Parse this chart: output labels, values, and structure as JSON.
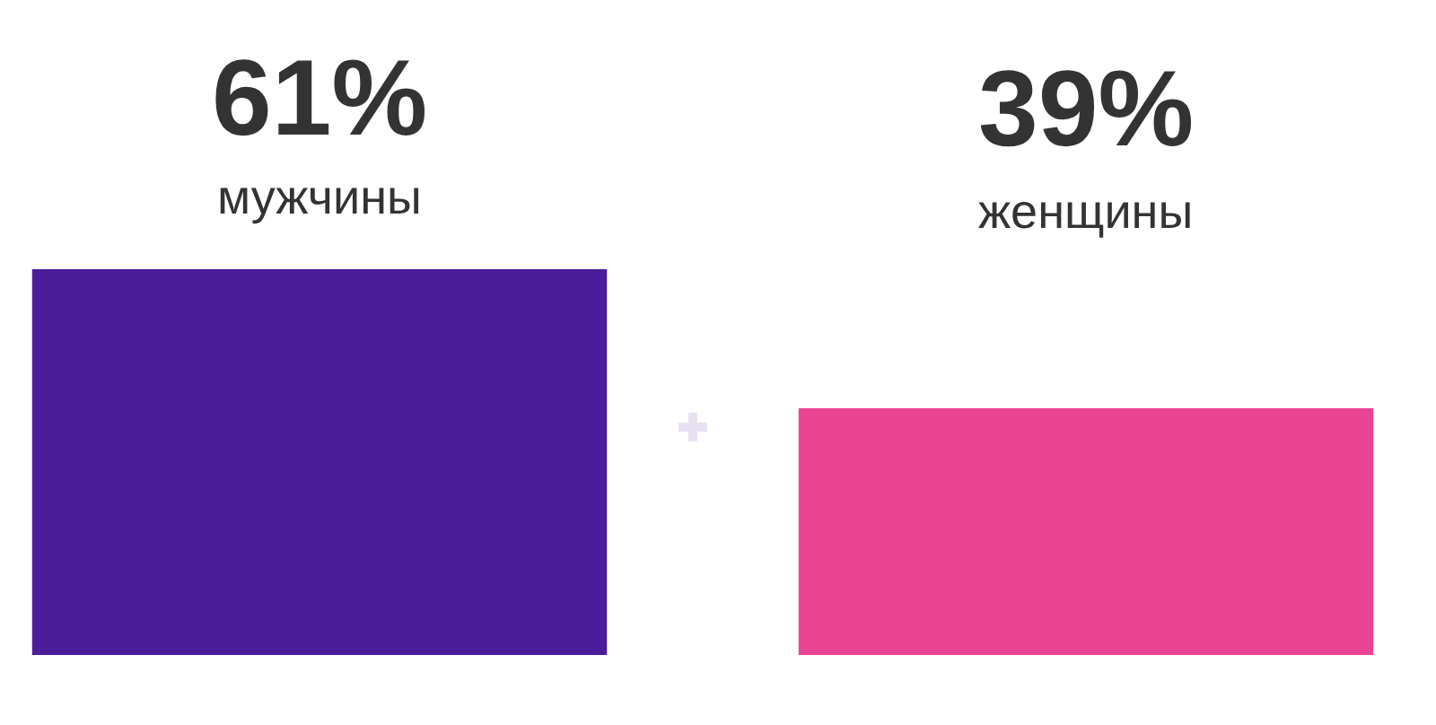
{
  "chart_data": {
    "type": "bar",
    "categories": [
      "мужчины",
      "женщины"
    ],
    "values": [
      61,
      39
    ],
    "value_labels": [
      "61%",
      "39%"
    ],
    "colors": [
      "#4b1d9b",
      "#ea4595"
    ]
  }
}
